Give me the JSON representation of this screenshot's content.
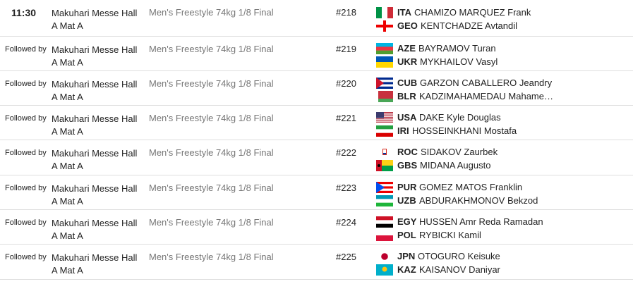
{
  "rows": [
    {
      "time": "11:30",
      "venue": [
        "Makuhari Messe Hall",
        "A Mat A"
      ],
      "event": "Men's Freestyle 74kg 1/8 Final",
      "match": "#218",
      "athletes": [
        {
          "code": "ITA",
          "name": "CHAMIZO MARQUEZ Frank"
        },
        {
          "code": "GEO",
          "name": "KENTCHADZE Avtandil"
        }
      ]
    },
    {
      "time": "Followed by",
      "venue": [
        "Makuhari Messe Hall",
        "A Mat A"
      ],
      "event": "Men's Freestyle 74kg 1/8 Final",
      "match": "#219",
      "athletes": [
        {
          "code": "AZE",
          "name": "BAYRAMOV Turan"
        },
        {
          "code": "UKR",
          "name": "MYKHAILOV Vasyl"
        }
      ]
    },
    {
      "time": "Followed by",
      "venue": [
        "Makuhari Messe Hall",
        "A Mat A"
      ],
      "event": "Men's Freestyle 74kg 1/8 Final",
      "match": "#220",
      "athletes": [
        {
          "code": "CUB",
          "name": "GARZON CABALLERO Jeandry"
        },
        {
          "code": "BLR",
          "name": "KADZIMAHAMEDAU Mahame…"
        }
      ]
    },
    {
      "time": "Followed by",
      "venue": [
        "Makuhari Messe Hall",
        "A Mat A"
      ],
      "event": "Men's Freestyle 74kg 1/8 Final",
      "match": "#221",
      "athletes": [
        {
          "code": "USA",
          "name": "DAKE Kyle Douglas"
        },
        {
          "code": "IRI",
          "name": "HOSSEINKHANI Mostafa"
        }
      ]
    },
    {
      "time": "Followed by",
      "venue": [
        "Makuhari Messe Hall",
        "A Mat A"
      ],
      "event": "Men's Freestyle 74kg 1/8 Final",
      "match": "#222",
      "athletes": [
        {
          "code": "ROC",
          "name": "SIDAKOV Zaurbek"
        },
        {
          "code": "GBS",
          "name": "MIDANA Augusto"
        }
      ]
    },
    {
      "time": "Followed by",
      "venue": [
        "Makuhari Messe Hall",
        "A Mat A"
      ],
      "event": "Men's Freestyle 74kg 1/8 Final",
      "match": "#223",
      "athletes": [
        {
          "code": "PUR",
          "name": "GOMEZ MATOS Franklin"
        },
        {
          "code": "UZB",
          "name": "ABDURAKHMONOV Bekzod"
        }
      ]
    },
    {
      "time": "Followed by",
      "venue": [
        "Makuhari Messe Hall",
        "A Mat A"
      ],
      "event": "Men's Freestyle 74kg 1/8 Final",
      "match": "#224",
      "athletes": [
        {
          "code": "EGY",
          "name": "HUSSEN Amr Reda Ramadan"
        },
        {
          "code": "POL",
          "name": "RYBICKI Kamil"
        }
      ]
    },
    {
      "time": "Followed by",
      "venue": [
        "Makuhari Messe Hall",
        "A Mat A"
      ],
      "event": "Men's Freestyle 74kg 1/8 Final",
      "match": "#225",
      "athletes": [
        {
          "code": "JPN",
          "name": "OTOGURO Keisuke"
        },
        {
          "code": "KAZ",
          "name": "KAISANOV Daniyar"
        }
      ]
    }
  ]
}
